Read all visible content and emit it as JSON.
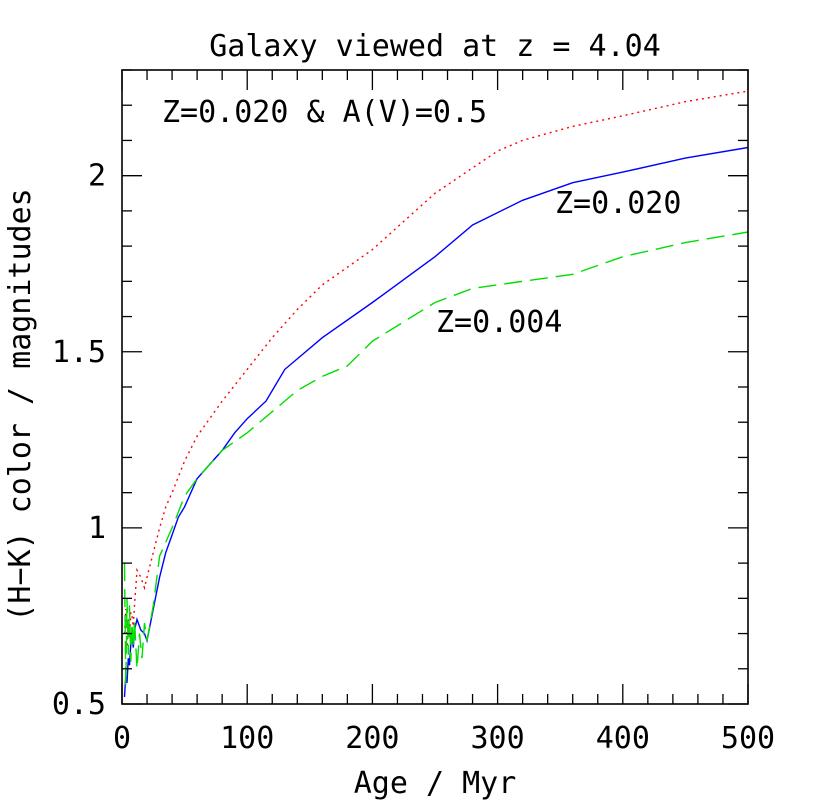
{
  "chart_data": {
    "type": "line",
    "title": "Galaxy viewed at z = 4.04",
    "xlabel": "Age / Myr",
    "ylabel": "(H−K) color / magnitudes",
    "xlim": [
      0,
      500
    ],
    "ylim": [
      0.5,
      2.3
    ],
    "xticks": [
      0,
      100,
      200,
      300,
      400,
      500
    ],
    "xtick_labels": [
      "0",
      "100",
      "200",
      "300",
      "400",
      "500"
    ],
    "yticks": [
      0.5,
      1,
      1.5,
      2
    ],
    "ytick_labels": [
      "0.5",
      "1",
      "1.5",
      "2"
    ],
    "grid": false,
    "series": [
      {
        "name": "Z=0.020 & A(V)=0.5",
        "color": "#ff0000",
        "style": "dotted",
        "x": [
          2,
          3,
          4,
          5,
          6,
          7,
          8,
          9,
          10,
          12,
          15,
          18,
          20,
          25,
          30,
          35,
          40,
          50,
          60,
          70,
          80,
          100,
          120,
          140,
          160,
          200,
          250,
          300,
          320,
          360,
          400,
          450,
          500
        ],
        "y": [
          0.7,
          0.77,
          0.66,
          0.74,
          0.69,
          0.76,
          0.75,
          0.72,
          0.78,
          0.88,
          0.86,
          0.83,
          0.86,
          0.93,
          1.0,
          1.06,
          1.1,
          1.19,
          1.26,
          1.31,
          1.36,
          1.45,
          1.54,
          1.62,
          1.69,
          1.79,
          1.95,
          2.07,
          2.1,
          2.14,
          2.17,
          2.21,
          2.24
        ]
      },
      {
        "name": "Z=0.020",
        "color": "#0000ff",
        "style": "solid",
        "x": [
          2,
          3,
          4,
          5,
          6,
          7,
          8,
          9,
          10,
          12,
          15,
          18,
          20,
          25,
          30,
          35,
          40,
          45,
          50,
          60,
          70,
          80,
          90,
          100,
          115,
          130,
          160,
          200,
          250,
          280,
          320,
          360,
          400,
          450,
          500
        ],
        "y": [
          0.52,
          0.58,
          0.56,
          0.63,
          0.61,
          0.67,
          0.69,
          0.66,
          0.71,
          0.74,
          0.71,
          0.7,
          0.68,
          0.77,
          0.86,
          0.93,
          0.98,
          1.03,
          1.06,
          1.14,
          1.18,
          1.22,
          1.27,
          1.31,
          1.36,
          1.45,
          1.54,
          1.64,
          1.77,
          1.86,
          1.93,
          1.98,
          2.01,
          2.05,
          2.08
        ]
      },
      {
        "name": "Z=0.004",
        "color": "#00dd00",
        "style": "dashed",
        "x": [
          2,
          3,
          4,
          5,
          6,
          7,
          8,
          9,
          10,
          12,
          14,
          16,
          18,
          20,
          25,
          30,
          35,
          40,
          50,
          60,
          70,
          80,
          100,
          120,
          140,
          160,
          180,
          200,
          250,
          280,
          320,
          360,
          400,
          450,
          500
        ],
        "y": [
          0.9,
          0.55,
          0.8,
          0.64,
          0.78,
          0.62,
          0.73,
          0.66,
          0.74,
          0.6,
          0.7,
          0.63,
          0.73,
          0.68,
          0.78,
          0.92,
          0.96,
          1.0,
          1.09,
          1.14,
          1.18,
          1.22,
          1.27,
          1.33,
          1.39,
          1.43,
          1.46,
          1.53,
          1.64,
          1.68,
          1.7,
          1.72,
          1.77,
          1.81,
          1.84
        ]
      }
    ]
  }
}
